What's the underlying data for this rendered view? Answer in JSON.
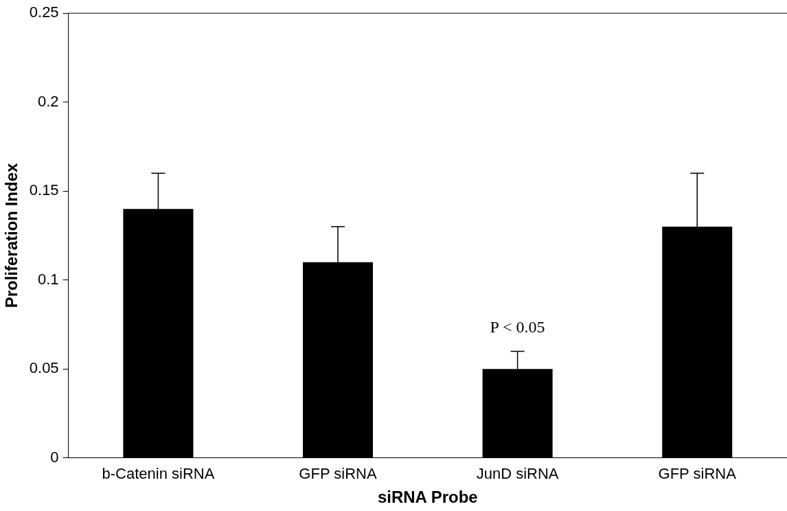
{
  "chart_data": {
    "type": "bar",
    "xlabel": "siRNA Probe",
    "ylabel": "Proliferation Index",
    "categories": [
      "b-Catenin siRNA",
      "GFP siRNA",
      "JunD siRNA",
      "GFP siRNA"
    ],
    "values": [
      0.14,
      0.11,
      0.05,
      0.13
    ],
    "errors": [
      [
        0.14,
        0.16
      ],
      [
        0.11,
        0.13
      ],
      [
        0.05,
        0.06
      ],
      [
        0.13,
        0.16
      ]
    ],
    "color": "#000000",
    "ylim": [
      0,
      0.25
    ],
    "yticks": [
      0,
      0.05,
      {
        "value": 0.1,
        "label": "0.1"
      },
      0.15,
      {
        "value": 0.2,
        "label": "0.2"
      },
      0.25
    ],
    "grid": false,
    "legend": false,
    "annotations": [
      {
        "text": "P < 0.05",
        "x": "JunD siRNA",
        "y": 0.05
      }
    ]
  }
}
